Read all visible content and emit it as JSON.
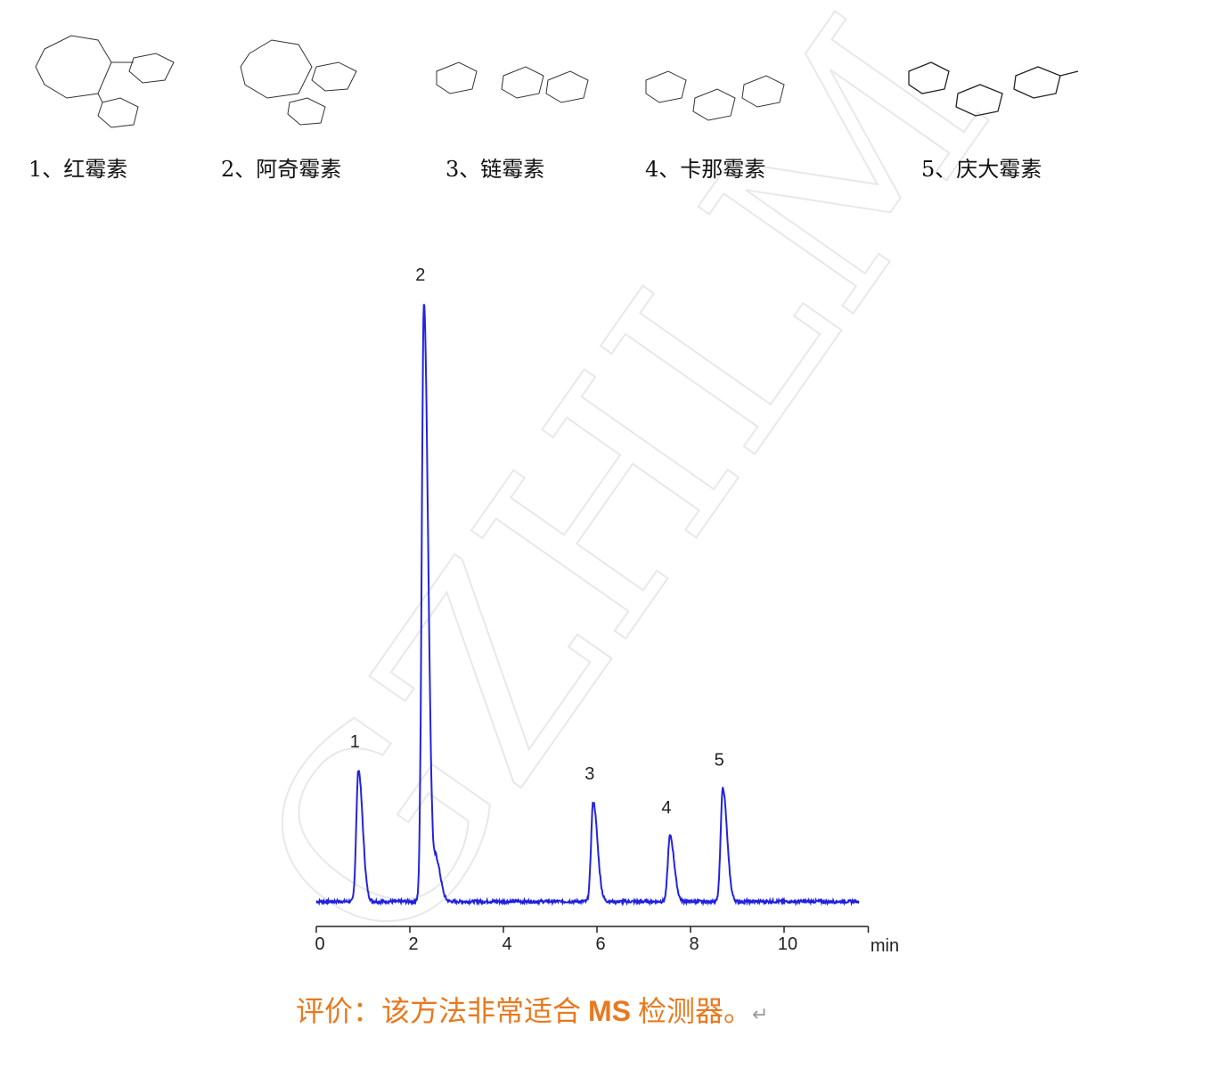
{
  "compounds": [
    {
      "label": "1、红霉素"
    },
    {
      "label": "2、阿奇霉素"
    },
    {
      "label": "3、链霉素"
    },
    {
      "label": "4、卡那霉素"
    },
    {
      "label": "5、庆大霉素"
    }
  ],
  "watermark": "GZHLM",
  "chart_data": {
    "type": "line",
    "title": "",
    "xlabel": "min",
    "ylabel": "",
    "xlim": [
      0,
      11.8
    ],
    "ylim": [
      0,
      100
    ],
    "x_ticks": [
      "0",
      "2",
      "4",
      "6",
      "8",
      "10"
    ],
    "grid": false,
    "line_color": "#2323E0",
    "peaks": [
      {
        "label": "1",
        "time": 0.9,
        "height": 22
      },
      {
        "label": "2",
        "time": 2.3,
        "height": 100
      },
      {
        "label": "",
        "time": 2.57,
        "height": 6.5
      },
      {
        "label": "3",
        "time": 5.92,
        "height": 16.7
      },
      {
        "label": "4",
        "time": 7.56,
        "height": 11
      },
      {
        "label": "5",
        "time": 8.69,
        "height": 19
      }
    ],
    "trace_range": [
      0,
      11.6
    ]
  },
  "caption": {
    "prefix": "评价：该方法非常适合",
    "bold": "MS",
    "suffix": "检测器。",
    "return_mark": "↵"
  }
}
